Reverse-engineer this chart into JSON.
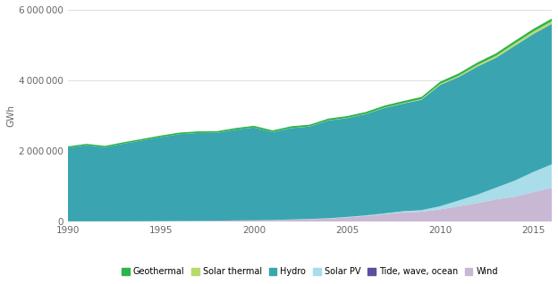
{
  "years": [
    1990,
    1991,
    1992,
    1993,
    1994,
    1995,
    1996,
    1997,
    1998,
    1999,
    2000,
    2001,
    2002,
    2003,
    2004,
    2005,
    2006,
    2007,
    2008,
    2009,
    2010,
    2011,
    2012,
    2013,
    2014,
    2015,
    2016
  ],
  "wind": [
    3500,
    4000,
    4500,
    5000,
    7000,
    10000,
    13000,
    16000,
    20000,
    28000,
    31000,
    38000,
    52000,
    65000,
    85000,
    118000,
    157000,
    208000,
    260000,
    276000,
    342000,
    435000,
    521000,
    628000,
    706000,
    831000,
    960000
  ],
  "tide_wave_ocean": [
    500,
    500,
    500,
    500,
    500,
    500,
    500,
    500,
    500,
    500,
    500,
    500,
    500,
    500,
    500,
    500,
    500,
    500,
    500,
    500,
    500,
    500,
    500,
    500,
    500,
    500,
    500
  ],
  "solar_pv": [
    100,
    150,
    200,
    300,
    400,
    600,
    800,
    1200,
    1500,
    2000,
    2500,
    3500,
    5000,
    6000,
    8000,
    11000,
    15000,
    20000,
    30000,
    45000,
    90000,
    160000,
    240000,
    330000,
    450000,
    570000,
    660000
  ],
  "hydro": [
    2090000,
    2160000,
    2100000,
    2200000,
    2290000,
    2380000,
    2460000,
    2490000,
    2490000,
    2570000,
    2630000,
    2490000,
    2590000,
    2620000,
    2770000,
    2800000,
    2870000,
    2990000,
    3050000,
    3130000,
    3440000,
    3500000,
    3630000,
    3680000,
    3820000,
    3910000,
    3980000
  ],
  "solar_thermal": [
    500,
    500,
    500,
    600,
    700,
    800,
    900,
    1000,
    1200,
    1400,
    2000,
    2500,
    3000,
    3500,
    4000,
    5000,
    6000,
    8000,
    12000,
    18000,
    26000,
    36000,
    46000,
    56000,
    65000,
    70000,
    74000
  ],
  "geothermal": [
    35000,
    36000,
    38000,
    40000,
    42000,
    44000,
    44500,
    45000,
    45000,
    45500,
    46000,
    47000,
    48000,
    49000,
    50000,
    52000,
    54000,
    56000,
    58000,
    60000,
    63000,
    65000,
    67000,
    69000,
    71000,
    73000,
    76000
  ],
  "colors": {
    "wind": "#c9b8d4",
    "tide_wave_ocean": "#5b4fa0",
    "solar_pv": "#a8dde9",
    "hydro": "#3aa5b0",
    "solar_thermal": "#b8d96e",
    "geothermal": "#2db34a"
  },
  "legend_labels": [
    "Geothermal",
    "Solar thermal",
    "Hydro",
    "Solar PV",
    "Tide, wave, ocean",
    "Wind"
  ],
  "legend_keys": [
    "geothermal",
    "solar_thermal",
    "hydro",
    "solar_pv",
    "tide_wave_ocean",
    "wind"
  ],
  "ylabel": "GWh",
  "ylim": [
    0,
    6000000
  ],
  "xlim": [
    1990,
    2016
  ],
  "yticks": [
    0,
    2000000,
    4000000,
    6000000
  ],
  "xticks": [
    1990,
    1995,
    2000,
    2005,
    2010,
    2015
  ]
}
